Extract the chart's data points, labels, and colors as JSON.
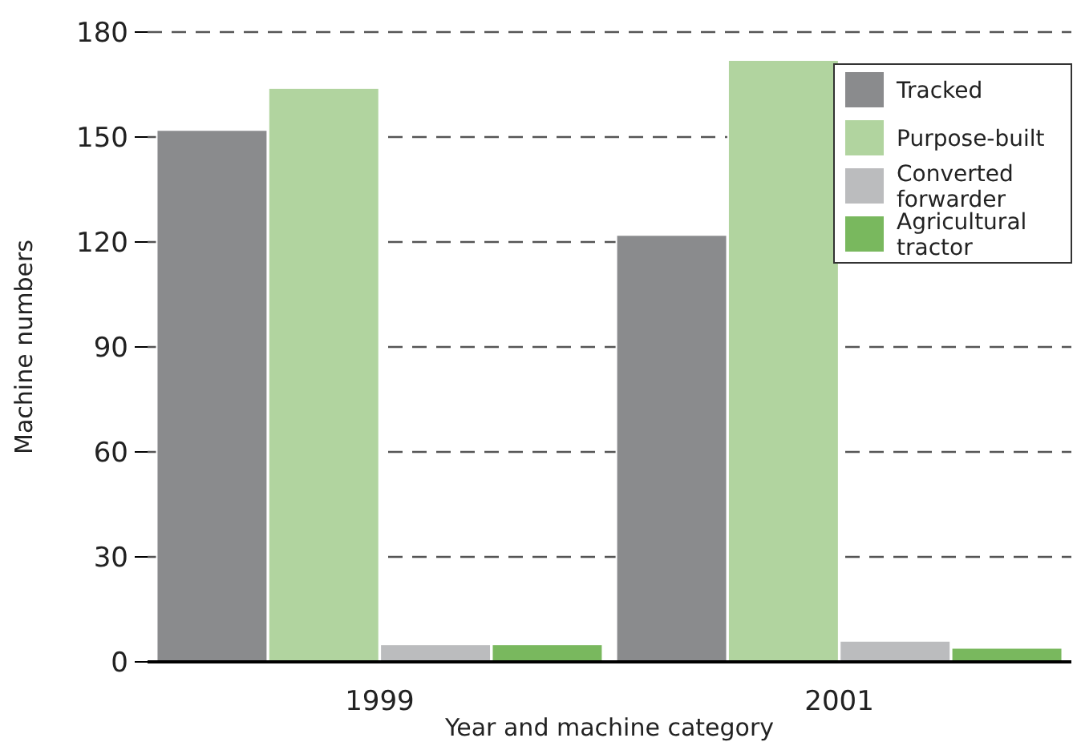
{
  "chart_data": {
    "type": "bar",
    "xlabel": "Year and machine category",
    "ylabel": "Machine numbers",
    "categories": [
      "1999",
      "2001"
    ],
    "series": [
      {
        "name": "Tracked",
        "color": "#8a8b8d",
        "values": [
          152,
          122
        ]
      },
      {
        "name": "Purpose-built",
        "color": "#b1d49f",
        "values": [
          164,
          172
        ]
      },
      {
        "name": "Converted forwarder",
        "color": "#bbbcbe",
        "values": [
          5,
          6
        ]
      },
      {
        "name": "Agricultural tractor",
        "color": "#79b85e",
        "values": [
          5,
          4
        ]
      }
    ],
    "ylim": [
      0,
      180
    ],
    "yticks": [
      0,
      30,
      60,
      90,
      120,
      150,
      180
    ],
    "grid": "y",
    "legend": "top right"
  }
}
